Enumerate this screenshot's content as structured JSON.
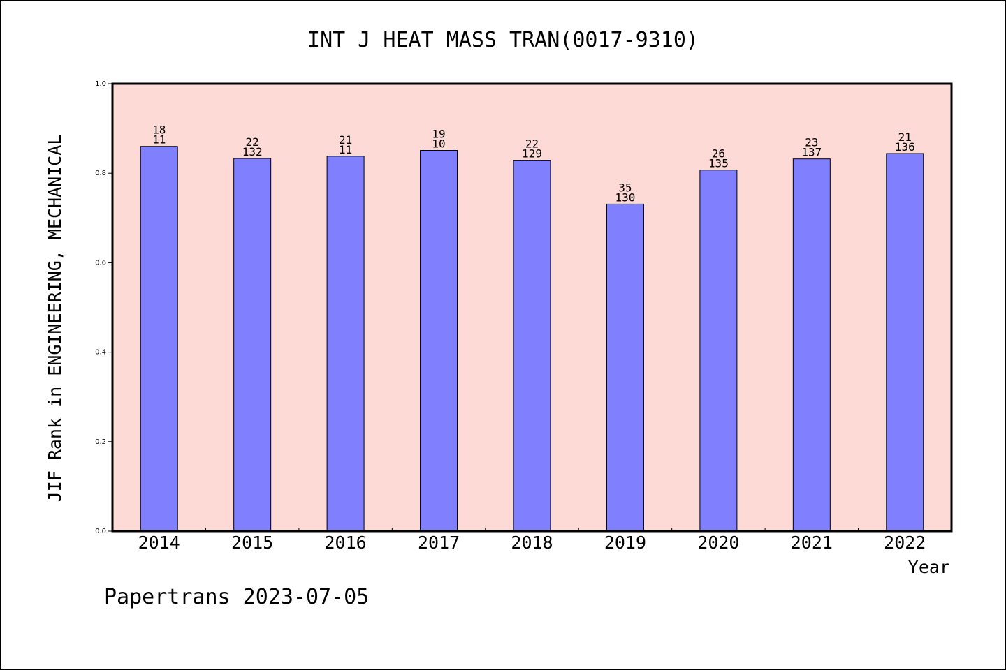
{
  "chart_data": {
    "type": "bar",
    "title": "INT J HEAT MASS TRAN(0017-9310)",
    "ylabel": "JIF Rank in ENGINEERING, MECHANICAL",
    "xlabel": "Year",
    "categories": [
      "2014",
      "2015",
      "2016",
      "2017",
      "2018",
      "2019",
      "2020",
      "2021",
      "2022"
    ],
    "values": [
      0.86,
      0.833,
      0.838,
      0.851,
      0.829,
      0.731,
      0.807,
      0.832,
      0.844
    ],
    "bar_labels": [
      [
        "18",
        "11"
      ],
      [
        "22",
        "132"
      ],
      [
        "21",
        "11"
      ],
      [
        "19",
        "10"
      ],
      [
        "22",
        "129"
      ],
      [
        "35",
        "130"
      ],
      [
        "26",
        "135"
      ],
      [
        "23",
        "137"
      ],
      [
        "21",
        "136"
      ]
    ],
    "ylim": [
      0,
      1.0
    ],
    "yticks": [
      "0.0",
      "0.2",
      "0.4",
      "0.6",
      "0.8",
      "1.0"
    ],
    "grid": false,
    "colors": {
      "plot_background": "#fddad6",
      "bar_fill": "#8080ff",
      "bar_stroke": "#000000"
    }
  },
  "footer": "Papertrans 2023-07-05"
}
